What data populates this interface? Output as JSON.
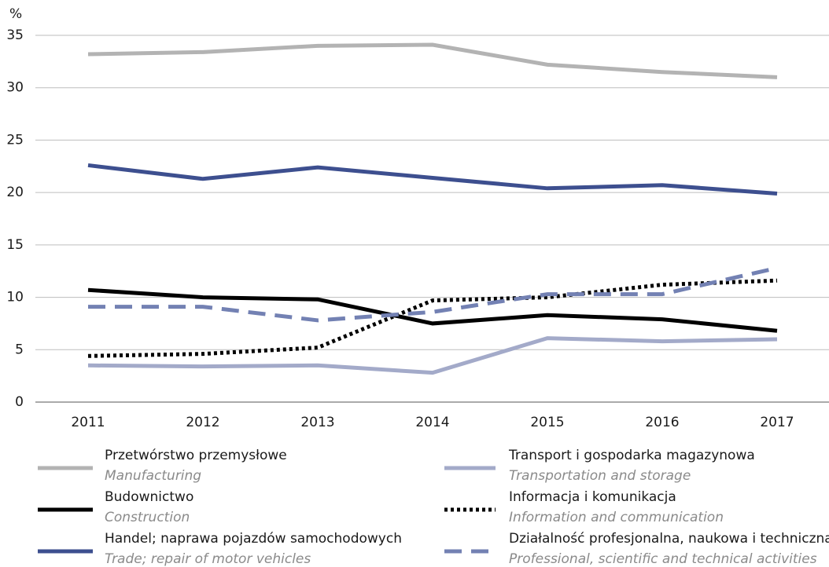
{
  "chart_data": {
    "type": "line",
    "y_axis_label": "%",
    "categories": [
      "2011",
      "2012",
      "2013",
      "2014",
      "2015",
      "2016",
      "2017"
    ],
    "ylim": [
      0,
      35
    ],
    "yticks": [
      0,
      5,
      10,
      15,
      20,
      25,
      30,
      35
    ],
    "grid": true,
    "series": [
      {
        "name": "Przetwórstwo przemysłowe",
        "name_en": "Manufacturing",
        "color": "#b3b3b3",
        "dash": "solid",
        "values": [
          33.2,
          33.4,
          34.0,
          34.1,
          32.2,
          31.5,
          31.0
        ]
      },
      {
        "name": "Budownictwo",
        "name_en": "Construction",
        "color": "#000000",
        "dash": "solid",
        "values": [
          10.7,
          10.0,
          9.8,
          7.5,
          8.3,
          7.9,
          6.8
        ]
      },
      {
        "name": "Handel; naprawa pojazdów samochodowych",
        "name_en": "Trade; repair of motor vehicles",
        "color": "#3d4f8f",
        "dash": "solid",
        "values": [
          22.6,
          21.3,
          22.4,
          21.4,
          20.4,
          20.7,
          19.9
        ]
      },
      {
        "name": "Transport i gospodarka magazynowa",
        "name_en": "Transportation and storage",
        "color": "#a3aac9",
        "dash": "solid",
        "values": [
          3.5,
          3.4,
          3.5,
          2.8,
          6.1,
          5.8,
          6.0
        ]
      },
      {
        "name": "Informacja i komunikacja",
        "name_en": "Information and communication",
        "color": "#000000",
        "dash": "dotted",
        "values": [
          4.4,
          4.6,
          5.2,
          9.7,
          10.0,
          11.2,
          11.6
        ]
      },
      {
        "name": "Działalność profesjonalna, naukowa i techniczna",
        "name_en": "Professional, scientific and technical activities",
        "color": "#7381b3",
        "dash": "dashed",
        "values": [
          9.1,
          9.1,
          7.8,
          8.6,
          10.3,
          10.3,
          12.8
        ]
      }
    ]
  }
}
